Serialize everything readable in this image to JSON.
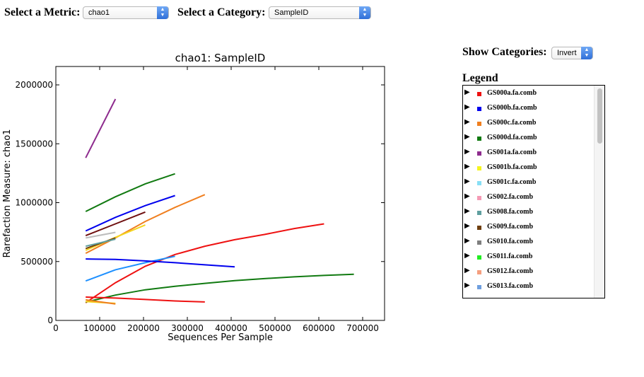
{
  "controls": {
    "metric_label": "Select a Metric:",
    "metric_value": "chao1",
    "category_label": "Select a Category:",
    "category_value": "SampleID",
    "show_categories_label": "Show Categories:",
    "show_categories_value": "Invert"
  },
  "legend": {
    "title": "Legend",
    "items": [
      {
        "label": "GS000a.fa.comb",
        "color": "#ee1111"
      },
      {
        "label": "GS000b.fa.comb",
        "color": "#0000ee"
      },
      {
        "label": "GS000c.fa.comb",
        "color": "#f07f1f"
      },
      {
        "label": "GS000d.fa.comb",
        "color": "#117a11"
      },
      {
        "label": "GS001a.fa.comb",
        "color": "#8e2c8e"
      },
      {
        "label": "GS001b.fa.comb",
        "color": "#f5f51f"
      },
      {
        "label": "GS001c.fa.comb",
        "color": "#88dff5"
      },
      {
        "label": "GS002.fa.comb",
        "color": "#f59ab5"
      },
      {
        "label": "GS008.fa.comb",
        "color": "#5f9f9f"
      },
      {
        "label": "GS009.fa.comb",
        "color": "#6f3f0f"
      },
      {
        "label": "GS010.fa.comb",
        "color": "#7f7f7f"
      },
      {
        "label": "GS011.fa.comb",
        "color": "#22ee22"
      },
      {
        "label": "GS012.fa.comb",
        "color": "#f59f7f"
      },
      {
        "label": "GS013.fa.comb",
        "color": "#6f9fdf"
      }
    ]
  },
  "chart_data": {
    "type": "line",
    "title": "chao1: SampleID",
    "xlabel": "Sequences Per Sample",
    "ylabel": "Rarefaction Measure: chao1",
    "xlim": [
      0,
      750000
    ],
    "ylim": [
      0,
      2000000
    ],
    "xticks": [
      0,
      100000,
      200000,
      300000,
      400000,
      500000,
      600000,
      700000
    ],
    "yticks": [
      0,
      500000,
      1000000,
      1500000,
      2000000
    ],
    "xtick_labels": [
      "0",
      "100000",
      "200000",
      "300000",
      "400000",
      "500000",
      "600000",
      "700000"
    ],
    "ytick_labels": [
      "0",
      "500000",
      "1000000",
      "1500000",
      "2000000"
    ],
    "series": [
      {
        "color": "#8e2c8e",
        "x": [
          68000,
          136000
        ],
        "y": [
          1380000,
          1880000
        ]
      },
      {
        "color": "#117a11",
        "x": [
          68000,
          136000,
          204000,
          272000
        ],
        "y": [
          925000,
          1050000,
          1160000,
          1245000
        ]
      },
      {
        "color": "#0000ee",
        "x": [
          68000,
          136000,
          204000,
          272000
        ],
        "y": [
          760000,
          875000,
          975000,
          1060000
        ]
      },
      {
        "color": "#f07f1f",
        "x": [
          68000,
          136000,
          204000,
          272000,
          340000
        ],
        "y": [
          570000,
          700000,
          840000,
          960000,
          1068000
        ]
      },
      {
        "color": "#6f0f0f",
        "x": [
          68000,
          136000,
          204000
        ],
        "y": [
          720000,
          820000,
          920000
        ]
      },
      {
        "color": "#f5d51f",
        "x": [
          68000,
          136000,
          204000
        ],
        "y": [
          595000,
          705000,
          810000
        ]
      },
      {
        "color": "#bcbcbc",
        "x": [
          68000,
          136000
        ],
        "y": [
          700000,
          748000
        ]
      },
      {
        "color": "#6f3f0f",
        "x": [
          68000,
          136000
        ],
        "y": [
          610000,
          700000
        ]
      },
      {
        "color": "#5f9f9f",
        "x": [
          68000,
          136000
        ],
        "y": [
          630000,
          690000
        ]
      },
      {
        "color": "#ee1111",
        "x": [
          68000,
          136000,
          204000,
          272000,
          340000,
          408000,
          476000,
          544000,
          612000
        ],
        "y": [
          150000,
          320000,
          460000,
          560000,
          630000,
          685000,
          730000,
          780000,
          820000
        ]
      },
      {
        "color": "#1e90ff",
        "x": [
          68000,
          136000,
          204000,
          272000
        ],
        "y": [
          335000,
          430000,
          490000,
          545000
        ]
      },
      {
        "color": "#0000ee",
        "x": [
          68000,
          136000,
          204000,
          272000,
          340000,
          408000
        ],
        "y": [
          522000,
          518000,
          505000,
          490000,
          472000,
          455000
        ]
      },
      {
        "color": "#117a11",
        "x": [
          68000,
          136000,
          204000,
          272000,
          340000,
          408000,
          476000,
          544000,
          612000,
          680000
        ],
        "y": [
          155000,
          215000,
          260000,
          290000,
          315000,
          338000,
          355000,
          370000,
          382000,
          392000
        ]
      },
      {
        "color": "#ee1111",
        "x": [
          68000,
          136000,
          204000,
          272000,
          340000
        ],
        "y": [
          198000,
          190000,
          178000,
          165000,
          157000
        ]
      },
      {
        "color": "#f5d51f",
        "x": [
          68000,
          136000
        ],
        "y": [
          160000,
          145000
        ]
      },
      {
        "color": "#ee7f1f",
        "x": [
          68000,
          136000
        ],
        "y": [
          175000,
          140000
        ]
      }
    ]
  }
}
